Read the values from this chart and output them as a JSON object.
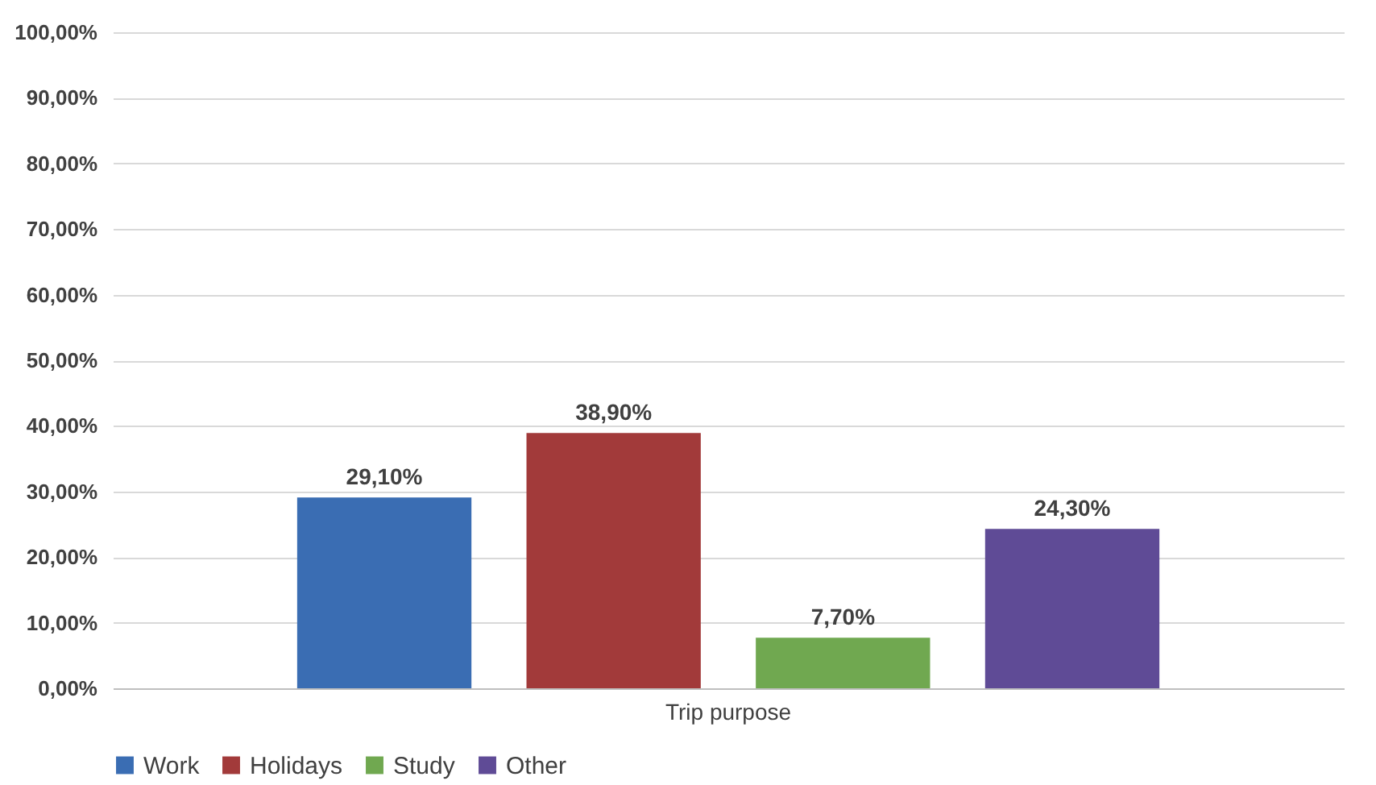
{
  "chart_data": {
    "type": "bar",
    "categories": [
      "Trip purpose"
    ],
    "series": [
      {
        "name": "Work",
        "color": "#3a6db3",
        "values": [
          29.1
        ],
        "value_labels": [
          "29,10%"
        ]
      },
      {
        "name": "Holidays",
        "color": "#a23a3a",
        "values": [
          38.9
        ],
        "value_labels": [
          "38,90%"
        ]
      },
      {
        "name": "Study",
        "color": "#70a850",
        "values": [
          7.7
        ],
        "value_labels": [
          "7,70%"
        ]
      },
      {
        "name": "Other",
        "color": "#5f4b96",
        "values": [
          24.3
        ],
        "value_labels": [
          "24,30%"
        ]
      }
    ],
    "ylim": [
      0,
      100
    ],
    "yticks": [
      {
        "value": 0,
        "label": "0,00%"
      },
      {
        "value": 10,
        "label": "10,00%"
      },
      {
        "value": 20,
        "label": "20,00%"
      },
      {
        "value": 30,
        "label": "30,00%"
      },
      {
        "value": 40,
        "label": "40,00%"
      },
      {
        "value": 50,
        "label": "50,00%"
      },
      {
        "value": 60,
        "label": "60,00%"
      },
      {
        "value": 70,
        "label": "70,00%"
      },
      {
        "value": 80,
        "label": "80,00%"
      },
      {
        "value": 90,
        "label": "90,00%"
      },
      {
        "value": 100,
        "label": "100,00%"
      }
    ],
    "grid": "y",
    "legend": "bottom"
  }
}
